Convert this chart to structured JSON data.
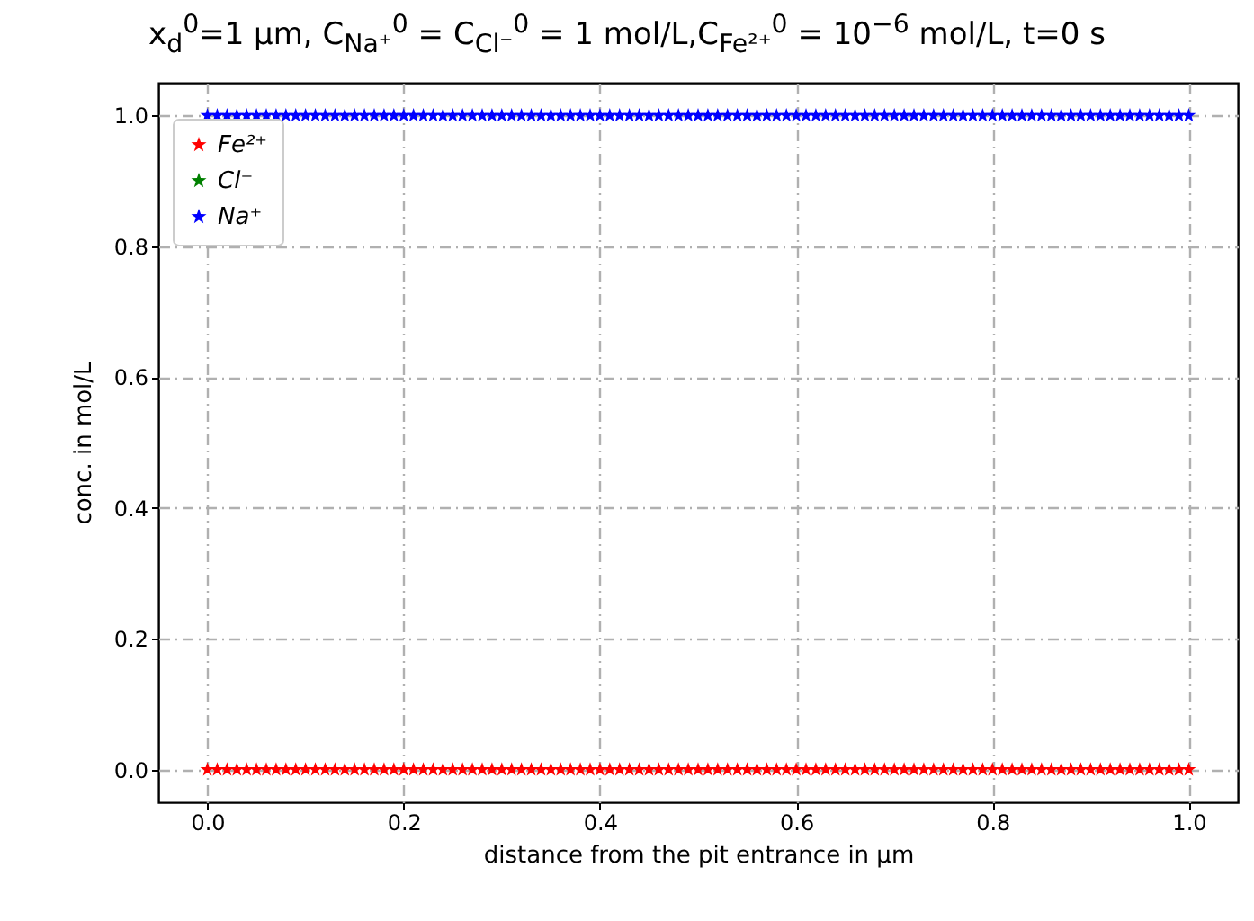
{
  "chart_data": {
    "type": "scatter",
    "title": "x$_{d}$$^{0}$=1 µm, C$_{Na⁺}$$^{0}$ = C$_{Cl⁻}$$^{0}$ = 1 mol/L,C$_{Fe²⁺}$$^{0}$ = 10$^{−6}$ mol/L, t=0 s",
    "xlabel": "distance from the pit entrance in µm",
    "ylabel": "conc. in mol/L",
    "x": [
      0,
      0.01,
      0.02,
      0.03,
      0.04,
      0.05,
      0.06,
      0.07,
      0.08,
      0.09,
      0.1,
      0.11,
      0.12,
      0.13,
      0.14,
      0.15,
      0.16,
      0.17,
      0.18,
      0.19,
      0.2,
      0.21,
      0.22,
      0.23,
      0.24,
      0.25,
      0.26,
      0.27,
      0.28,
      0.29,
      0.3,
      0.31,
      0.32,
      0.33,
      0.34,
      0.35,
      0.36,
      0.37,
      0.38,
      0.39,
      0.4,
      0.41,
      0.42,
      0.43,
      0.44,
      0.45,
      0.46,
      0.47,
      0.48,
      0.49,
      0.5,
      0.51,
      0.52,
      0.53,
      0.54,
      0.55,
      0.56,
      0.57,
      0.58,
      0.59,
      0.6,
      0.61,
      0.62,
      0.63,
      0.64,
      0.65,
      0.66,
      0.67,
      0.68,
      0.69,
      0.7,
      0.71,
      0.72,
      0.73,
      0.74,
      0.75,
      0.76,
      0.77,
      0.78,
      0.79,
      0.8,
      0.81,
      0.82,
      0.83,
      0.84,
      0.85,
      0.86,
      0.87,
      0.88,
      0.89,
      0.9,
      0.91,
      0.92,
      0.93,
      0.94,
      0.95,
      0.96,
      0.97,
      0.98,
      0.99,
      1
    ],
    "series": [
      {
        "name": "Fe²⁺",
        "color": "#ff0000",
        "values": [
          0,
          0,
          0,
          0,
          0,
          0,
          0,
          0,
          0,
          0,
          0,
          0,
          0,
          0,
          0,
          0,
          0,
          0,
          0,
          0,
          0,
          0,
          0,
          0,
          0,
          0,
          0,
          0,
          0,
          0,
          0,
          0,
          0,
          0,
          0,
          0,
          0,
          0,
          0,
          0,
          0,
          0,
          0,
          0,
          0,
          0,
          0,
          0,
          0,
          0,
          0,
          0,
          0,
          0,
          0,
          0,
          0,
          0,
          0,
          0,
          0,
          0,
          0,
          0,
          0,
          0,
          0,
          0,
          0,
          0,
          0,
          0,
          0,
          0,
          0,
          0,
          0,
          0,
          0,
          0,
          0,
          0,
          0,
          0,
          0,
          0,
          0,
          0,
          0,
          0,
          0,
          0,
          0,
          0,
          0,
          0,
          0,
          0,
          0,
          0,
          0
        ]
      },
      {
        "name": "Cl⁻",
        "color": "#008000",
        "values": [
          null,
          null,
          null,
          null,
          null,
          null,
          null,
          null,
          null,
          null,
          null,
          null,
          null,
          null,
          null,
          null,
          null,
          null,
          null,
          null,
          null,
          null,
          null,
          null,
          null,
          null,
          null,
          null,
          null,
          null,
          null,
          null,
          null,
          null,
          null,
          null,
          null,
          null,
          null,
          null,
          null,
          null,
          null,
          null,
          null,
          null,
          null,
          null,
          null,
          null,
          null,
          null,
          null,
          null,
          null,
          null,
          null,
          null,
          null,
          null,
          null,
          null,
          null,
          null,
          null,
          null,
          null,
          null,
          null,
          null,
          null,
          null,
          null,
          null,
          null,
          null,
          null,
          null,
          null,
          null,
          null,
          null,
          null,
          null,
          null,
          null,
          null,
          null,
          null,
          null,
          null,
          null,
          null,
          null,
          null,
          null,
          null,
          null,
          null,
          null,
          null
        ]
      },
      {
        "name": "Na⁺",
        "color": "#0000ff",
        "values": [
          1,
          1,
          1,
          1,
          1,
          1,
          1,
          1,
          1,
          1,
          1,
          1,
          1,
          1,
          1,
          1,
          1,
          1,
          1,
          1,
          1,
          1,
          1,
          1,
          1,
          1,
          1,
          1,
          1,
          1,
          1,
          1,
          1,
          1,
          1,
          1,
          1,
          1,
          1,
          1,
          1,
          1,
          1,
          1,
          1,
          1,
          1,
          1,
          1,
          1,
          1,
          1,
          1,
          1,
          1,
          1,
          1,
          1,
          1,
          1,
          1,
          1,
          1,
          1,
          1,
          1,
          1,
          1,
          1,
          1,
          1,
          1,
          1,
          1,
          1,
          1,
          1,
          1,
          1,
          1,
          1,
          1,
          1,
          1,
          1,
          1,
          1,
          1,
          1,
          1,
          1,
          1,
          1,
          1,
          1,
          1,
          1,
          1,
          1,
          1,
          1
        ]
      }
    ],
    "xlim": [
      -0.05,
      1.05
    ],
    "ylim": [
      -0.05,
      1.05
    ],
    "xticks": [
      {
        "value": 0,
        "label": "0.0"
      },
      0.2,
      0.4,
      0.6,
      0.8,
      {
        "value": 1,
        "label": "1.0"
      }
    ],
    "yticks": [
      {
        "value": 0,
        "label": "0.0"
      },
      0.2,
      0.4,
      0.6,
      0.8,
      {
        "value": 1,
        "label": "1.0"
      }
    ],
    "grid": true,
    "legend": "top left",
    "marker": "star"
  }
}
